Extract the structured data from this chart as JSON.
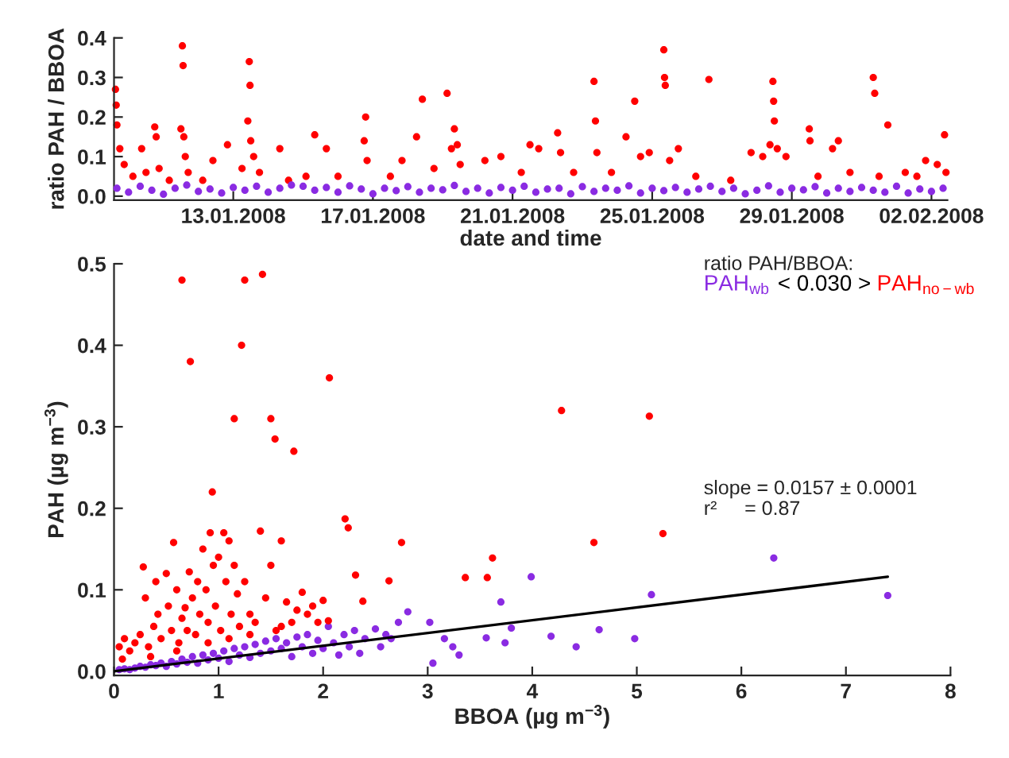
{
  "chart_data": [
    {
      "type": "scatter",
      "xlabel": "date and time",
      "ylabel": "ratio PAH / BBOA",
      "marker": "circle",
      "grid": false,
      "xlim": [
        "2008-01-09T14:00",
        "2008-02-02T11:00"
      ],
      "xticks": [
        {
          "value": "2008-01-13",
          "label": "13.01.2008"
        },
        {
          "value": "2008-01-17",
          "label": "17.01.2008"
        },
        {
          "value": "2008-01-21",
          "label": "21.01.2008"
        },
        {
          "value": "2008-01-25",
          "label": "25.01.2008"
        },
        {
          "value": "2008-01-29",
          "label": "29.01.2008"
        },
        {
          "value": "2008-02-02",
          "label": "02.02.2008"
        }
      ],
      "ylim": [
        -0.01,
        0.4
      ],
      "yticks": [
        {
          "value": 0,
          "label": "0.0"
        },
        {
          "value": 0.1,
          "label": "0.1"
        },
        {
          "value": 0.2,
          "label": "0.2"
        },
        {
          "value": 0.3,
          "label": "0.3"
        },
        {
          "value": 0.4,
          "label": "0.4"
        }
      ],
      "series": [
        {
          "color": "#ff0000",
          "x": [
            "2008-01-09T15:00",
            "2008-01-09T15:30",
            "2008-01-09T16:00",
            "2008-01-09T18:00",
            "2008-01-09T21:00",
            "2008-01-10T03:00",
            "2008-01-10T09:00",
            "2008-01-10T12:00",
            "2008-01-10T18:00",
            "2008-01-10T19:00",
            "2008-01-10T21:00",
            "2008-01-11T04:00",
            "2008-01-11T12:00",
            "2008-01-11T13:00",
            "2008-01-11T13:30",
            "2008-01-11T14:00",
            "2008-01-11T15:00",
            "2008-01-11T17:00",
            "2008-01-12T03:00",
            "2008-01-12T10:00",
            "2008-01-12T20:00",
            "2008-01-13T06:00",
            "2008-01-13T10:00",
            "2008-01-13T11:00",
            "2008-01-13T11:30",
            "2008-01-13T12:00",
            "2008-01-13T14:00",
            "2008-01-13T18:00",
            "2008-01-14T08:00",
            "2008-01-14T14:00",
            "2008-01-15T02:00",
            "2008-01-15T08:00",
            "2008-01-15T16:00",
            "2008-01-16T00:00",
            "2008-01-16T18:00",
            "2008-01-16T19:00",
            "2008-01-16T20:00",
            "2008-01-17T12:00",
            "2008-01-17T20:00",
            "2008-01-18T06:00",
            "2008-01-18T10:00",
            "2008-01-18T18:00",
            "2008-01-19T03:00",
            "2008-01-19T06:00",
            "2008-01-19T08:00",
            "2008-01-19T10:00",
            "2008-01-19T12:00",
            "2008-01-20T05:00",
            "2008-01-20T16:00",
            "2008-01-21T06:00",
            "2008-01-21T12:00",
            "2008-01-21T18:00",
            "2008-01-22T07:00",
            "2008-01-22T09:00",
            "2008-01-22T18:00",
            "2008-01-23T08:00",
            "2008-01-23T09:00",
            "2008-01-23T10:00",
            "2008-01-23T20:00",
            "2008-01-24T06:00",
            "2008-01-24T12:00",
            "2008-01-24T16:00",
            "2008-01-24T22:00",
            "2008-01-25T08:00",
            "2008-01-25T08:30",
            "2008-01-25T09:00",
            "2008-01-25T12:00",
            "2008-01-25T18:00",
            "2008-01-26T06:00",
            "2008-01-26T15:00",
            "2008-01-27T06:00",
            "2008-01-27T20:00",
            "2008-01-28T04:00",
            "2008-01-28T09:00",
            "2008-01-28T11:00",
            "2008-01-28T11:30",
            "2008-01-28T12:00",
            "2008-01-28T14:00",
            "2008-01-28T20:00",
            "2008-01-29T12:00",
            "2008-01-29T12:30",
            "2008-01-29T18:00",
            "2008-01-30T04:00",
            "2008-01-30T08:00",
            "2008-01-30T16:00",
            "2008-01-31T08:00",
            "2008-01-31T09:00",
            "2008-01-31T12:00",
            "2008-01-31T18:00",
            "2008-02-01T06:00",
            "2008-02-01T14:00",
            "2008-02-01T20:00",
            "2008-02-02T04:00",
            "2008-02-02T09:00",
            "2008-02-02T10:00"
          ],
          "values": [
            0.27,
            0.23,
            0.18,
            0.12,
            0.08,
            0.05,
            0.12,
            0.06,
            0.175,
            0.15,
            0.07,
            0.04,
            0.17,
            0.38,
            0.33,
            0.15,
            0.1,
            0.06,
            0.04,
            0.09,
            0.13,
            0.07,
            0.19,
            0.34,
            0.28,
            0.14,
            0.1,
            0.06,
            0.12,
            0.04,
            0.05,
            0.155,
            0.12,
            0.05,
            0.14,
            0.2,
            0.09,
            0.05,
            0.09,
            0.15,
            0.245,
            0.07,
            0.26,
            0.12,
            0.17,
            0.13,
            0.08,
            0.09,
            0.1,
            0.06,
            0.13,
            0.12,
            0.16,
            0.11,
            0.06,
            0.29,
            0.19,
            0.11,
            0.06,
            0.15,
            0.24,
            0.1,
            0.11,
            0.37,
            0.3,
            0.28,
            0.09,
            0.12,
            0.05,
            0.295,
            0.04,
            0.11,
            0.1,
            0.13,
            0.29,
            0.24,
            0.19,
            0.12,
            0.1,
            0.17,
            0.14,
            0.05,
            0.12,
            0.14,
            0.06,
            0.3,
            0.26,
            0.05,
            0.18,
            0.06,
            0.05,
            0.09,
            0.08,
            0.155,
            0.06
          ]
        },
        {
          "color": "#8a2be2",
          "x": [
            "2008-01-09T16:00",
            "2008-01-10T00:00",
            "2008-01-10T08:00",
            "2008-01-10T16:00",
            "2008-01-11T00:00",
            "2008-01-11T08:00",
            "2008-01-11T16:00",
            "2008-01-12T00:00",
            "2008-01-12T08:00",
            "2008-01-12T16:00",
            "2008-01-13T00:00",
            "2008-01-13T08:00",
            "2008-01-13T16:00",
            "2008-01-14T00:00",
            "2008-01-14T08:00",
            "2008-01-14T16:00",
            "2008-01-15T00:00",
            "2008-01-15T08:00",
            "2008-01-15T16:00",
            "2008-01-16T00:00",
            "2008-01-16T08:00",
            "2008-01-16T16:00",
            "2008-01-17T00:00",
            "2008-01-17T08:00",
            "2008-01-17T16:00",
            "2008-01-18T00:00",
            "2008-01-18T08:00",
            "2008-01-18T16:00",
            "2008-01-19T00:00",
            "2008-01-19T08:00",
            "2008-01-19T16:00",
            "2008-01-20T00:00",
            "2008-01-20T08:00",
            "2008-01-20T16:00",
            "2008-01-21T00:00",
            "2008-01-21T08:00",
            "2008-01-21T16:00",
            "2008-01-22T00:00",
            "2008-01-22T08:00",
            "2008-01-22T16:00",
            "2008-01-23T00:00",
            "2008-01-23T08:00",
            "2008-01-23T16:00",
            "2008-01-24T00:00",
            "2008-01-24T08:00",
            "2008-01-24T16:00",
            "2008-01-25T00:00",
            "2008-01-25T08:00",
            "2008-01-25T16:00",
            "2008-01-26T00:00",
            "2008-01-26T08:00",
            "2008-01-26T16:00",
            "2008-01-27T00:00",
            "2008-01-27T08:00",
            "2008-01-27T16:00",
            "2008-01-28T00:00",
            "2008-01-28T08:00",
            "2008-01-28T16:00",
            "2008-01-29T00:00",
            "2008-01-29T08:00",
            "2008-01-29T16:00",
            "2008-01-30T00:00",
            "2008-01-30T08:00",
            "2008-01-30T16:00",
            "2008-01-31T00:00",
            "2008-01-31T08:00",
            "2008-01-31T16:00",
            "2008-02-01T00:00",
            "2008-02-01T08:00",
            "2008-02-01T16:00",
            "2008-02-02T00:00",
            "2008-02-02T08:00"
          ],
          "values": [
            0.02,
            0.01,
            0.025,
            0.015,
            0.005,
            0.02,
            0.028,
            0.012,
            0.018,
            0.008,
            0.022,
            0.015,
            0.025,
            0.01,
            0.02,
            0.028,
            0.025,
            0.015,
            0.022,
            0.01,
            0.026,
            0.018,
            0.006,
            0.02,
            0.014,
            0.024,
            0.01,
            0.02,
            0.016,
            0.027,
            0.012,
            0.02,
            0.008,
            0.022,
            0.015,
            0.025,
            0.01,
            0.018,
            0.02,
            0.006,
            0.024,
            0.012,
            0.02,
            0.015,
            0.026,
            0.008,
            0.02,
            0.014,
            0.022,
            0.01,
            0.018,
            0.025,
            0.012,
            0.02,
            0.006,
            0.015,
            0.026,
            0.01,
            0.02,
            0.016,
            0.024,
            0.008,
            0.02,
            0.012,
            0.022,
            0.015,
            0.01,
            0.025,
            0.008,
            0.018,
            0.012,
            0.02
          ]
        }
      ]
    },
    {
      "type": "scatter",
      "xlabel": "BBOA (µg m$^{−3}$)",
      "ylabel": "PAH (µg m$^{−3}$)",
      "marker": "circle",
      "grid": false,
      "xlim": [
        0,
        8
      ],
      "xticks": [
        0,
        1,
        2,
        3,
        4,
        5,
        6,
        7,
        8
      ],
      "ylim": [
        -0.005,
        0.5
      ],
      "yticks": [
        {
          "value": 0,
          "label": "0.0"
        },
        {
          "value": 0.1,
          "label": "0.1"
        },
        {
          "value": 0.2,
          "label": "0.2"
        },
        {
          "value": 0.3,
          "label": "0.3"
        },
        {
          "value": 0.4,
          "label": "0.4"
        },
        {
          "value": 0.5,
          "label": "0.5"
        }
      ],
      "annotations": [
        "ratio PAH/BBOA:",
        "< 0.030 >",
        "slope = 0.0157 ± 0.0001",
        "r²     = 0.87"
      ],
      "series": [
        {
          "name": "PAH$_{wb}$",
          "color": "#8a2be2",
          "x": [
            0.05,
            0.1,
            0.15,
            0.2,
            0.25,
            0.3,
            0.35,
            0.4,
            0.45,
            0.5,
            0.55,
            0.6,
            0.65,
            0.7,
            0.75,
            0.8,
            0.85,
            0.9,
            0.95,
            1.0,
            1.05,
            1.1,
            1.15,
            1.2,
            1.25,
            1.3,
            1.35,
            1.4,
            1.45,
            1.5,
            1.55,
            1.6,
            1.65,
            1.7,
            1.75,
            1.8,
            1.85,
            1.9,
            1.95,
            2.0,
            2.05,
            2.1,
            2.15,
            2.2,
            2.25,
            2.3,
            2.35,
            2.4,
            2.5,
            2.55,
            2.6,
            2.65,
            2.72,
            2.81,
            3.02,
            3.05,
            3.16,
            3.24,
            3.3,
            3.56,
            3.7,
            3.74,
            3.8,
            3.99,
            4.18,
            4.42,
            4.64,
            4.98,
            5.14,
            6.31,
            7.4
          ],
          "values": [
            0.002,
            0.003,
            0.002,
            0.004,
            0.006,
            0.005,
            0.008,
            0.007,
            0.01,
            0.006,
            0.012,
            0.009,
            0.015,
            0.011,
            0.018,
            0.01,
            0.02,
            0.014,
            0.022,
            0.016,
            0.025,
            0.012,
            0.028,
            0.02,
            0.03,
            0.017,
            0.033,
            0.022,
            0.037,
            0.025,
            0.04,
            0.028,
            0.035,
            0.018,
            0.042,
            0.03,
            0.045,
            0.022,
            0.038,
            0.028,
            0.055,
            0.035,
            0.02,
            0.045,
            0.03,
            0.05,
            0.022,
            0.04,
            0.052,
            0.03,
            0.045,
            0.04,
            0.06,
            0.073,
            0.06,
            0.01,
            0.04,
            0.03,
            0.02,
            0.041,
            0.085,
            0.035,
            0.053,
            0.116,
            0.043,
            0.03,
            0.051,
            0.04,
            0.094,
            0.139,
            0.093
          ]
        },
        {
          "name": "PAH$_{no−wb}$",
          "color": "#ff0000",
          "x": [
            0.65,
            1.25,
            1.42,
            0.73,
            1.22,
            2.06,
            1.15,
            1.5,
            1.54,
            1.72,
            0.94,
            4.28,
            5.12,
            2.21,
            2.24,
            2.75,
            2.63,
            2.31,
            2.38,
            3.36,
            3.57,
            3.62,
            4.59,
            5.25,
            0.05,
            0.08,
            0.1,
            0.15,
            0.2,
            0.25,
            0.28,
            0.3,
            0.33,
            0.38,
            0.4,
            0.42,
            0.45,
            0.5,
            0.52,
            0.55,
            0.57,
            0.6,
            0.62,
            0.65,
            0.68,
            0.7,
            0.72,
            0.75,
            0.78,
            0.8,
            0.82,
            0.85,
            0.88,
            0.9,
            0.92,
            0.95,
            0.97,
            1.0,
            1.02,
            1.05,
            1.07,
            1.1,
            1.12,
            1.15,
            1.18,
            1.2,
            1.25,
            1.3,
            1.35,
            1.4,
            1.45,
            1.5,
            1.55,
            1.6,
            1.65,
            1.7,
            1.75,
            1.8,
            1.85,
            1.9,
            2.0,
            2.05,
            1.95,
            1.1,
            0.9,
            0.6,
            0.35,
            1.3,
            1.6
          ],
          "values": [
            0.48,
            0.48,
            0.487,
            0.38,
            0.4,
            0.36,
            0.31,
            0.31,
            0.285,
            0.27,
            0.22,
            0.32,
            0.313,
            0.187,
            0.176,
            0.158,
            0.111,
            0.118,
            0.086,
            0.115,
            0.115,
            0.139,
            0.158,
            0.169,
            0.03,
            0.015,
            0.04,
            0.025,
            0.035,
            0.045,
            0.128,
            0.09,
            0.03,
            0.055,
            0.11,
            0.07,
            0.04,
            0.12,
            0.08,
            0.05,
            0.158,
            0.1,
            0.035,
            0.065,
            0.078,
            0.05,
            0.122,
            0.09,
            0.045,
            0.11,
            0.07,
            0.15,
            0.1,
            0.06,
            0.17,
            0.13,
            0.08,
            0.14,
            0.05,
            0.17,
            0.11,
            0.16,
            0.07,
            0.13,
            0.095,
            0.055,
            0.11,
            0.07,
            0.06,
            0.172,
            0.09,
            0.13,
            0.05,
            0.16,
            0.085,
            0.06,
            0.075,
            0.097,
            0.07,
            0.08,
            0.087,
            0.062,
            0.06,
            0.04,
            0.035,
            0.025,
            0.018,
            0.045,
            0.055
          ]
        },
        {
          "type": "line",
          "marker": "none",
          "color": "#000000",
          "x": [
            0,
            7.4
          ],
          "values": [
            0,
            0.116
          ]
        }
      ]
    }
  ]
}
